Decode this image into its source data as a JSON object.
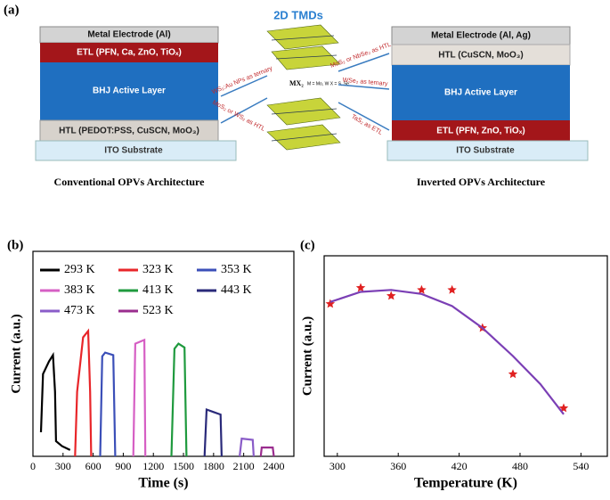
{
  "figure": {
    "panel_a": {
      "label": "(a)",
      "center_title": "2D TMDs",
      "mx2": "MX₂",
      "mx2_legend": "M = Mo, W   X = S, Se",
      "left_stack": {
        "metal": "Metal Electrode (Al)",
        "etl": "ETL (PFN, Ca, ZnO, TiOₓ)",
        "active": "BHJ Active Layer",
        "htl": "HTL (PEDOT:PSS, CuSCN, MoO₃)",
        "ito": "ITO Substrate",
        "caption": "Conventional OPVs Architecture"
      },
      "right_stack": {
        "metal": "Metal Electrode (Al, Ag)",
        "htl": "HTL (CuSCN, MoO₃)",
        "active": "BHJ Active Layer",
        "etl": "ETL (PFN, ZnO, TiOₓ)",
        "ito": "ITO Substrate",
        "caption": "Inverted OPVs Architecture"
      },
      "arrows": [
        "WS₂:Au NPs as ternary",
        "MoS₂ or WS₂ as HTL",
        "MoS₂ or NbSe₂ as HTL",
        "WSe₂ as ternary",
        "TaS₂ as ETL"
      ]
    }
  },
  "chart_data": [
    {
      "type": "line",
      "panel_label": "(b)",
      "x_label": "Time (s)",
      "y_label": "Current (a.u.)",
      "xlim": [
        0,
        2600
      ],
      "xticks": [
        0,
        300,
        600,
        900,
        1200,
        1500,
        1800,
        2100,
        2400
      ],
      "ylim": [
        0,
        162
      ],
      "series": [
        {
          "name": "293 K",
          "color": "#000000",
          "x": [
            80,
            100,
            160,
            200,
            220,
            230,
            290,
            370
          ],
          "values": [
            19,
            65,
            75,
            80,
            51,
            12,
            8,
            5
          ]
        },
        {
          "name": "323 K",
          "color": "#e8262a",
          "x": [
            420,
            440,
            500,
            550,
            570,
            580
          ],
          "values": [
            0,
            51,
            94,
            99,
            51,
            0
          ]
        },
        {
          "name": "353 K",
          "color": "#3b4fb8",
          "x": [
            670,
            690,
            720,
            800,
            820
          ],
          "values": [
            0,
            79,
            82,
            80,
            0
          ]
        },
        {
          "name": "383 K",
          "color": "#d65fc4",
          "x": [
            1000,
            1020,
            1110,
            1120
          ],
          "values": [
            0,
            89,
            92,
            0
          ]
        },
        {
          "name": "413 K",
          "color": "#1f9a3e",
          "x": [
            1380,
            1410,
            1450,
            1510,
            1530
          ],
          "values": [
            0,
            85,
            89,
            86,
            0
          ]
        },
        {
          "name": "443 K",
          "color": "#2a2a7a",
          "x": [
            1710,
            1730,
            1800,
            1870,
            1880
          ],
          "values": [
            0,
            37,
            35,
            33,
            0
          ]
        },
        {
          "name": "473 K",
          "color": "#8a5cc8",
          "x": [
            2060,
            2080,
            2190,
            2200
          ],
          "values": [
            0,
            14,
            13,
            0
          ]
        },
        {
          "name": "523 K",
          "color": "#9a2d8e",
          "x": [
            2270,
            2280,
            2390,
            2400
          ],
          "values": [
            0,
            7,
            7,
            0
          ]
        }
      ]
    },
    {
      "type": "scatter",
      "panel_label": "(c)",
      "x_label": "Temperature (K)",
      "y_label": "Current (a.u.)",
      "xlim": [
        287,
        566
      ],
      "xticks": [
        300,
        360,
        420,
        480,
        540
      ],
      "ylim": [
        0,
        100
      ],
      "series": [
        {
          "style": "markers",
          "color": "#e02020",
          "x": [
            293,
            323,
            353,
            383,
            413,
            443,
            473,
            523
          ],
          "values": [
            76,
            84,
            80,
            83,
            83,
            64,
            41,
            24
          ]
        },
        {
          "style": "line",
          "color": "#7b3fb5",
          "x": [
            293,
            323,
            353,
            383,
            413,
            443,
            473,
            500,
            523
          ],
          "values": [
            77,
            82,
            83,
            81,
            75,
            64,
            50,
            36,
            21
          ]
        }
      ]
    }
  ]
}
